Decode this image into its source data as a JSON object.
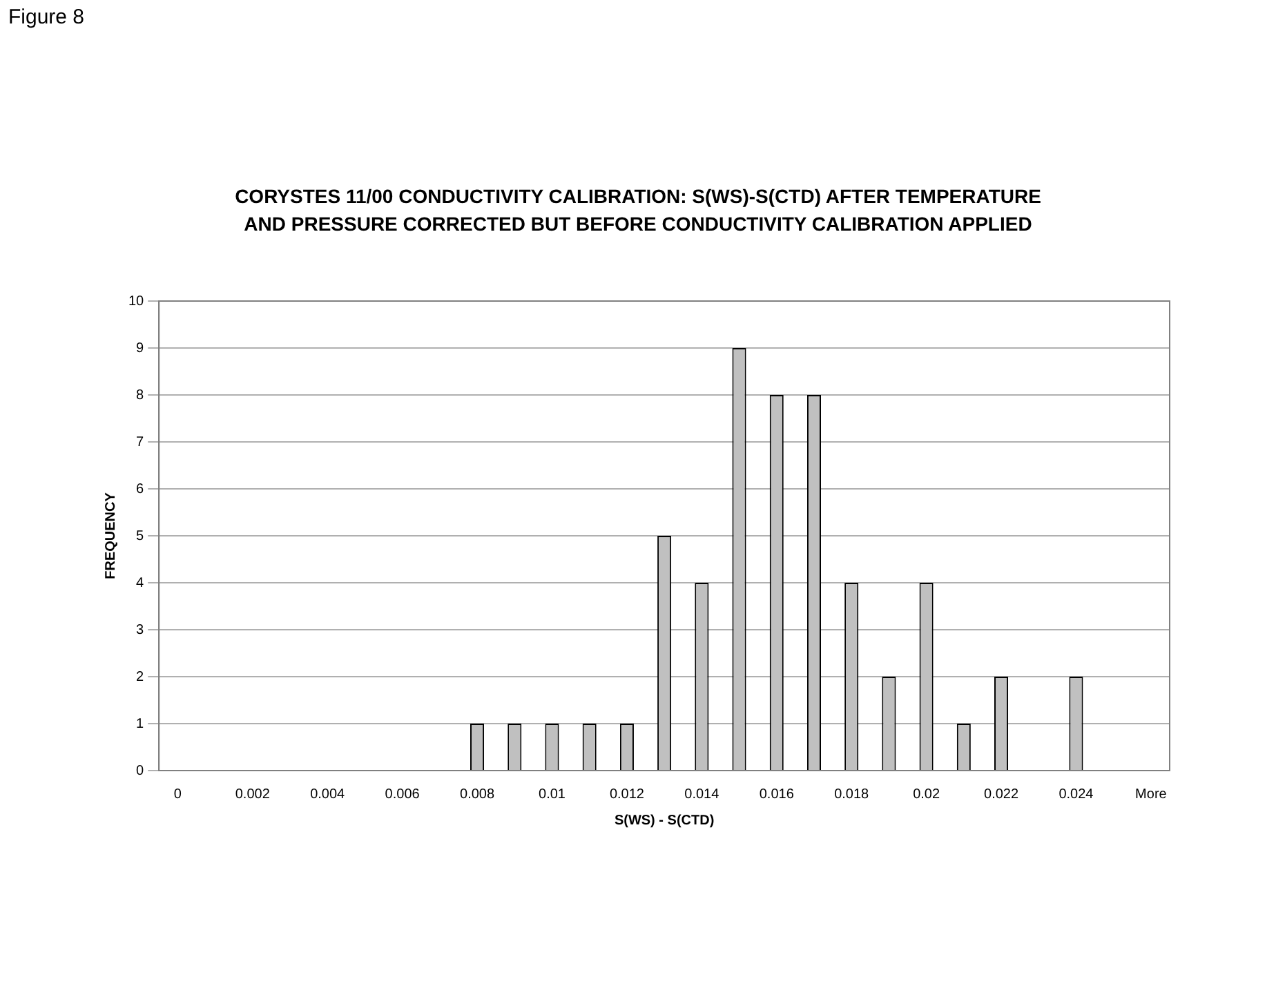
{
  "chart_data": {
    "type": "bar",
    "title": "CORYSTES 11/00 CONDUCTIVITY CALIBRATION: S(WS)-S(CTD) AFTER TEMPERATURE AND PRESSURE CORRECTED BUT BEFORE CONDUCTIVITY CALIBRATION APPLIED",
    "xlabel": "S(WS) - S(CTD)",
    "ylabel": "FREQUENCY",
    "annotations": [
      "Figure 8"
    ],
    "categories": [
      "0",
      null,
      "0.002",
      null,
      "0.004",
      null,
      "0.006",
      null,
      "0.008",
      null,
      "0.01",
      null,
      "0.012",
      null,
      "0.014",
      null,
      "0.016",
      null,
      "0.018",
      null,
      "0.02",
      null,
      "0.022",
      null,
      "0.024",
      null,
      "More"
    ],
    "values": [
      0,
      0,
      0,
      0,
      0,
      0,
      0,
      0,
      1,
      1,
      1,
      1,
      1,
      5,
      4,
      9,
      8,
      8,
      4,
      2,
      4,
      1,
      2,
      0,
      2,
      0,
      0
    ],
    "color": "#c0c0c0",
    "ylim": [
      0,
      10
    ],
    "yticks": [
      0,
      1,
      2,
      3,
      4,
      5,
      6,
      7,
      8,
      9,
      10
    ],
    "grid": "y",
    "legend": false
  }
}
